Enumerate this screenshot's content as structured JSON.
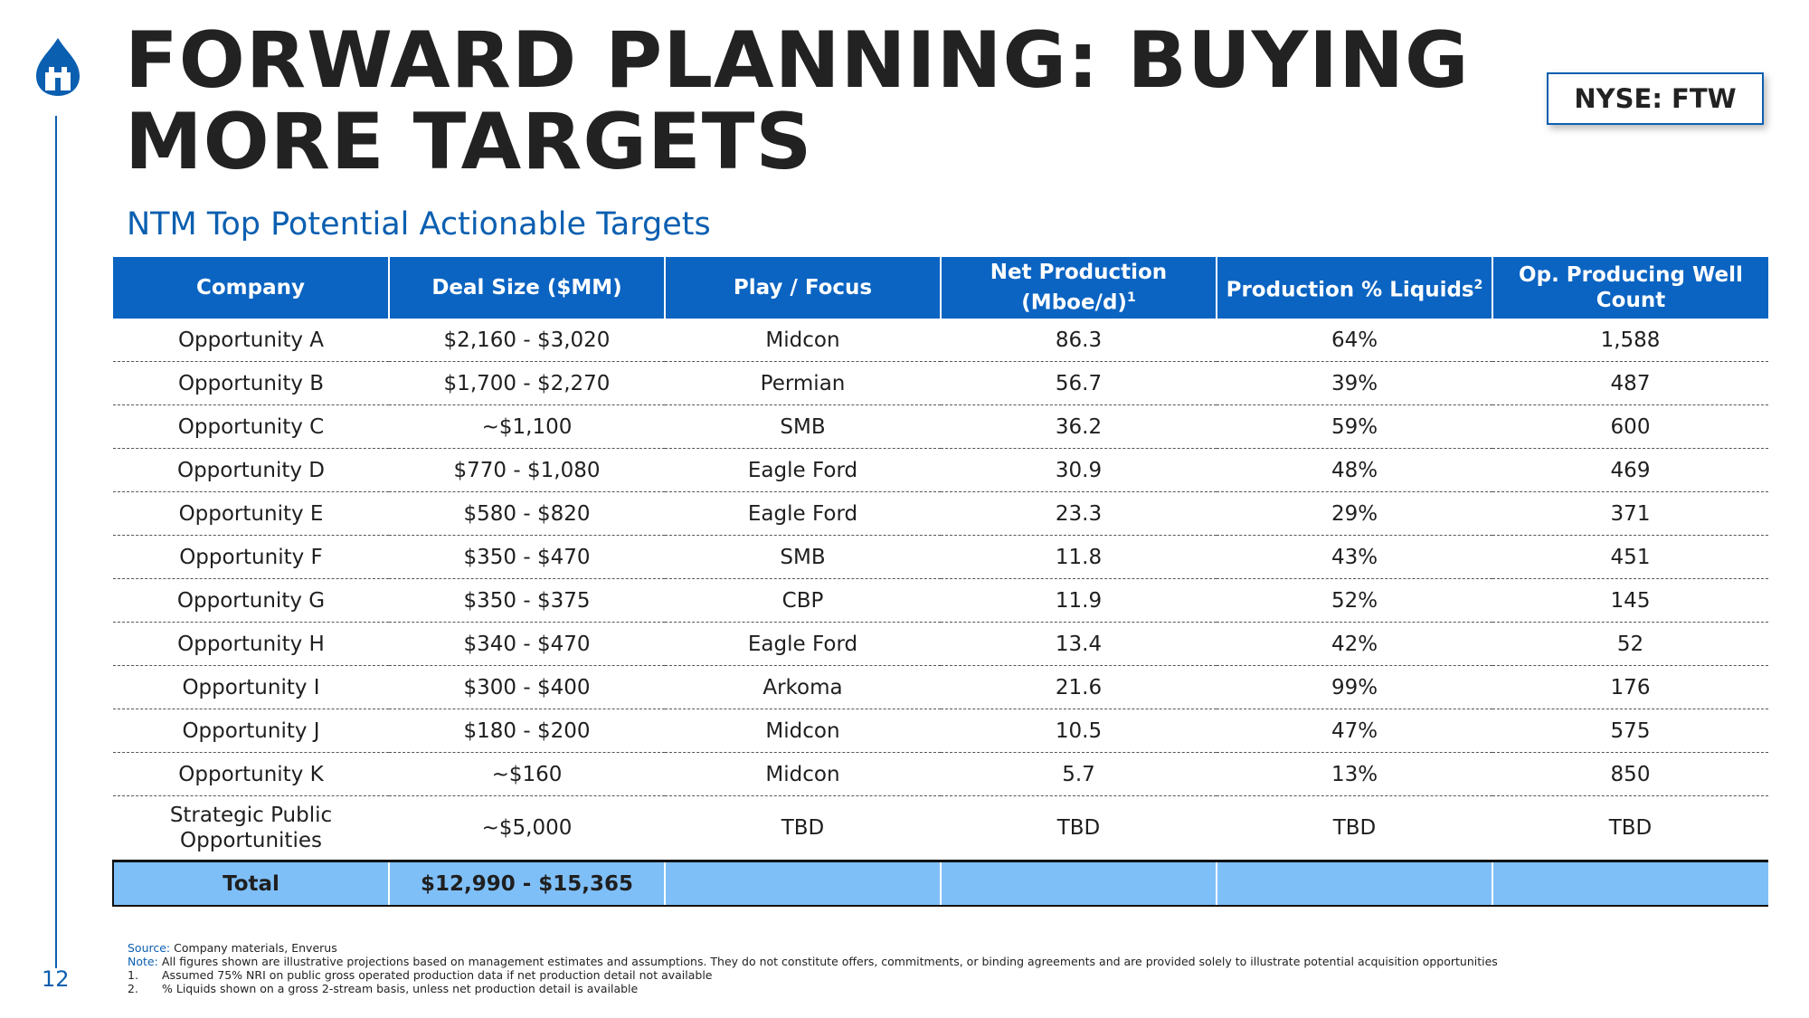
{
  "title": "FORWARD PLANNING: BUYING MORE TARGETS",
  "ticker": "NYSE: FTW",
  "subtitle": "NTM Top Potential Actionable Targets",
  "page_number": "12",
  "colors": {
    "accent": "#0b5fb0",
    "header_bg": "#0b64c2",
    "total_bg": "#7fbff8"
  },
  "table": {
    "headers": {
      "company": "Company",
      "deal_size": "Deal Size ($MM)",
      "play": "Play / Focus",
      "net_production": "Net Production (Mboe/d)",
      "net_production_note": "1",
      "liquids": "Production % Liquids",
      "liquids_note": "2",
      "well_count": "Op. Producing Well Count"
    },
    "rows": [
      {
        "company": "Opportunity A",
        "deal_size": "$2,160 - $3,020",
        "play": "Midcon",
        "net_production": "86.3",
        "liquids": "64%",
        "well_count": "1,588"
      },
      {
        "company": "Opportunity B",
        "deal_size": "$1,700 - $2,270",
        "play": "Permian",
        "net_production": "56.7",
        "liquids": "39%",
        "well_count": "487"
      },
      {
        "company": "Opportunity C",
        "deal_size": "~$1,100",
        "play": "SMB",
        "net_production": "36.2",
        "liquids": "59%",
        "well_count": "600"
      },
      {
        "company": "Opportunity D",
        "deal_size": "$770 - $1,080",
        "play": "Eagle Ford",
        "net_production": "30.9",
        "liquids": "48%",
        "well_count": "469"
      },
      {
        "company": "Opportunity E",
        "deal_size": "$580 - $820",
        "play": "Eagle Ford",
        "net_production": "23.3",
        "liquids": "29%",
        "well_count": "371"
      },
      {
        "company": "Opportunity F",
        "deal_size": "$350 - $470",
        "play": "SMB",
        "net_production": "11.8",
        "liquids": "43%",
        "well_count": "451"
      },
      {
        "company": "Opportunity G",
        "deal_size": "$350 - $375",
        "play": "CBP",
        "net_production": "11.9",
        "liquids": "52%",
        "well_count": "145"
      },
      {
        "company": "Opportunity H",
        "deal_size": "$340 - $470",
        "play": "Eagle Ford",
        "net_production": "13.4",
        "liquids": "42%",
        "well_count": "52"
      },
      {
        "company": "Opportunity I",
        "deal_size": "$300 - $400",
        "play": "Arkoma",
        "net_production": "21.6",
        "liquids": "99%",
        "well_count": "176"
      },
      {
        "company": "Opportunity J",
        "deal_size": "$180 - $200",
        "play": "Midcon",
        "net_production": "10.5",
        "liquids": "47%",
        "well_count": "575"
      },
      {
        "company": "Opportunity K",
        "deal_size": "~$160",
        "play": "Midcon",
        "net_production": "5.7",
        "liquids": "13%",
        "well_count": "850"
      },
      {
        "company": "Strategic Public Opportunities",
        "deal_size": "~$5,000",
        "play": "TBD",
        "net_production": "TBD",
        "liquids": "TBD",
        "well_count": "TBD"
      }
    ],
    "total": {
      "label": "Total",
      "deal_size": "$12,990 - $15,365"
    }
  },
  "footnotes": {
    "source_label": "Source:",
    "source": "Company materials, Enverus",
    "note_label": "Note:",
    "note": "All figures shown are illustrative projections based on management estimates and assumptions. They do not constitute offers, commitments, or binding agreements and are provided solely to illustrate potential acquisition opportunities",
    "items": [
      {
        "num": "1.",
        "text": "Assumed 75% NRI on public gross operated production data if net production detail not available"
      },
      {
        "num": "2.",
        "text": "% Liquids shown on a gross 2-stream basis, unless net production detail is available"
      }
    ]
  }
}
